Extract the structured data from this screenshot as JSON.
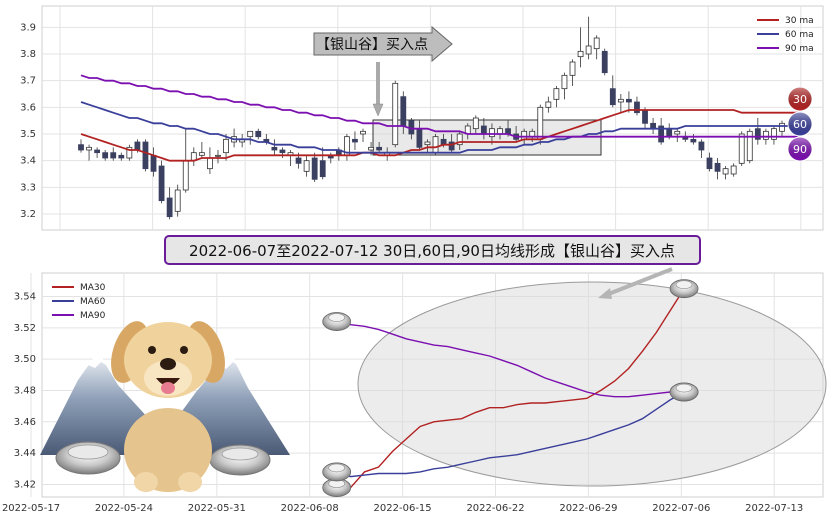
{
  "colors": {
    "ma30": "#b22222",
    "ma60": "#3a3f9a",
    "ma90": "#7b0fb0",
    "candle_up": "#ffffff",
    "candle_down": "#3b4060",
    "banner_border": "#6a1b9a",
    "banner_bg": "#e6e6e6"
  },
  "top_chart": {
    "annotation_label": "【银山谷】买入点",
    "legend": [
      "30 ma",
      "60 ma",
      "90 ma"
    ],
    "badges": [
      "30",
      "60",
      "90"
    ],
    "y_ticks": [
      "3.2",
      "3.3",
      "3.4",
      "3.5",
      "3.6",
      "3.7",
      "3.8",
      "3.9"
    ]
  },
  "banner": {
    "text": "2022-06-07至2022-07-12 30日,60日,90日均线形成【银山谷】买入点"
  },
  "bottom_chart": {
    "legend": [
      "MA30",
      "MA60",
      "MA90"
    ],
    "y_ticks": [
      "3.42",
      "3.44",
      "3.46",
      "3.48",
      "3.50",
      "3.52",
      "3.54"
    ],
    "x_ticks": [
      "2022-05-17",
      "2022-05-24",
      "2022-05-31",
      "2022-06-08",
      "2022-06-15",
      "2022-06-22",
      "2022-06-29",
      "2022-07-06",
      "2022-07-13"
    ]
  },
  "chart_data": [
    {
      "type": "candlestick",
      "title": "",
      "ylim": [
        3.14,
        3.98
      ],
      "candles": [
        {
          "o": 3.46,
          "h": 3.48,
          "l": 3.43,
          "c": 3.44
        },
        {
          "o": 3.44,
          "h": 3.46,
          "l": 3.4,
          "c": 3.45
        },
        {
          "o": 3.44,
          "h": 3.45,
          "l": 3.41,
          "c": 3.43
        },
        {
          "o": 3.43,
          "h": 3.44,
          "l": 3.4,
          "c": 3.41
        },
        {
          "o": 3.43,
          "h": 3.45,
          "l": 3.4,
          "c": 3.41
        },
        {
          "o": 3.42,
          "h": 3.43,
          "l": 3.4,
          "c": 3.41
        },
        {
          "o": 3.41,
          "h": 3.46,
          "l": 3.4,
          "c": 3.45
        },
        {
          "o": 3.47,
          "h": 3.48,
          "l": 3.43,
          "c": 3.44
        },
        {
          "o": 3.47,
          "h": 3.48,
          "l": 3.36,
          "c": 3.37
        },
        {
          "o": 3.42,
          "h": 3.45,
          "l": 3.34,
          "c": 3.36
        },
        {
          "o": 3.38,
          "h": 3.4,
          "l": 3.24,
          "c": 3.25
        },
        {
          "o": 3.26,
          "h": 3.3,
          "l": 3.18,
          "c": 3.19
        },
        {
          "o": 3.21,
          "h": 3.31,
          "l": 3.19,
          "c": 3.29
        },
        {
          "o": 3.29,
          "h": 3.52,
          "l": 3.28,
          "c": 3.4
        },
        {
          "o": 3.4,
          "h": 3.45,
          "l": 3.38,
          "c": 3.43
        },
        {
          "o": 3.42,
          "h": 3.47,
          "l": 3.41,
          "c": 3.43
        },
        {
          "o": 3.37,
          "h": 3.45,
          "l": 3.35,
          "c": 3.41
        },
        {
          "o": 3.42,
          "h": 3.44,
          "l": 3.39,
          "c": 3.42
        },
        {
          "o": 3.43,
          "h": 3.5,
          "l": 3.4,
          "c": 3.48
        },
        {
          "o": 3.47,
          "h": 3.52,
          "l": 3.45,
          "c": 3.49
        },
        {
          "o": 3.47,
          "h": 3.5,
          "l": 3.45,
          "c": 3.48
        },
        {
          "o": 3.49,
          "h": 3.51,
          "l": 3.46,
          "c": 3.51
        },
        {
          "o": 3.51,
          "h": 3.52,
          "l": 3.48,
          "c": 3.49
        },
        {
          "o": 3.48,
          "h": 3.5,
          "l": 3.46,
          "c": 3.47
        },
        {
          "o": 3.45,
          "h": 3.48,
          "l": 3.42,
          "c": 3.44
        },
        {
          "o": 3.44,
          "h": 3.45,
          "l": 3.41,
          "c": 3.43
        },
        {
          "o": 3.42,
          "h": 3.44,
          "l": 3.38,
          "c": 3.43
        },
        {
          "o": 3.41,
          "h": 3.43,
          "l": 3.37,
          "c": 3.39
        },
        {
          "o": 3.36,
          "h": 3.42,
          "l": 3.34,
          "c": 3.4
        },
        {
          "o": 3.41,
          "h": 3.43,
          "l": 3.32,
          "c": 3.33
        },
        {
          "o": 3.4,
          "h": 3.45,
          "l": 3.33,
          "c": 3.34
        },
        {
          "o": 3.42,
          "h": 3.43,
          "l": 3.39,
          "c": 3.41
        },
        {
          "o": 3.44,
          "h": 3.45,
          "l": 3.4,
          "c": 3.42
        },
        {
          "o": 3.42,
          "h": 3.5,
          "l": 3.4,
          "c": 3.49
        },
        {
          "o": 3.48,
          "h": 3.51,
          "l": 3.44,
          "c": 3.47
        },
        {
          "o": 3.5,
          "h": 3.52,
          "l": 3.47,
          "c": 3.51
        },
        {
          "o": 3.44,
          "h": 3.47,
          "l": 3.42,
          "c": 3.45
        },
        {
          "o": 3.45,
          "h": 3.47,
          "l": 3.43,
          "c": 3.44
        },
        {
          "o": 3.42,
          "h": 3.45,
          "l": 3.4,
          "c": 3.43
        },
        {
          "o": 3.46,
          "h": 3.7,
          "l": 3.45,
          "c": 3.69
        },
        {
          "o": 3.64,
          "h": 3.66,
          "l": 3.5,
          "c": 3.53
        },
        {
          "o": 3.55,
          "h": 3.56,
          "l": 3.48,
          "c": 3.5
        },
        {
          "o": 3.52,
          "h": 3.55,
          "l": 3.44,
          "c": 3.45
        },
        {
          "o": 3.46,
          "h": 3.48,
          "l": 3.43,
          "c": 3.47
        },
        {
          "o": 3.43,
          "h": 3.5,
          "l": 3.42,
          "c": 3.49
        },
        {
          "o": 3.48,
          "h": 3.5,
          "l": 3.45,
          "c": 3.46
        },
        {
          "o": 3.47,
          "h": 3.5,
          "l": 3.43,
          "c": 3.44
        },
        {
          "o": 3.46,
          "h": 3.51,
          "l": 3.44,
          "c": 3.5
        },
        {
          "o": 3.5,
          "h": 3.54,
          "l": 3.48,
          "c": 3.53
        },
        {
          "o": 3.52,
          "h": 3.57,
          "l": 3.5,
          "c": 3.56
        },
        {
          "o": 3.53,
          "h": 3.56,
          "l": 3.48,
          "c": 3.5
        },
        {
          "o": 3.49,
          "h": 3.54,
          "l": 3.46,
          "c": 3.52
        },
        {
          "o": 3.5,
          "h": 3.53,
          "l": 3.48,
          "c": 3.52
        },
        {
          "o": 3.52,
          "h": 3.55,
          "l": 3.49,
          "c": 3.5
        },
        {
          "o": 3.5,
          "h": 3.53,
          "l": 3.47,
          "c": 3.48
        },
        {
          "o": 3.48,
          "h": 3.52,
          "l": 3.46,
          "c": 3.51
        },
        {
          "o": 3.49,
          "h": 3.52,
          "l": 3.47,
          "c": 3.51
        },
        {
          "o": 3.48,
          "h": 3.61,
          "l": 3.46,
          "c": 3.6
        },
        {
          "o": 3.6,
          "h": 3.64,
          "l": 3.58,
          "c": 3.62
        },
        {
          "o": 3.63,
          "h": 3.68,
          "l": 3.6,
          "c": 3.67
        },
        {
          "o": 3.67,
          "h": 3.73,
          "l": 3.63,
          "c": 3.72
        },
        {
          "o": 3.72,
          "h": 3.78,
          "l": 3.68,
          "c": 3.77
        },
        {
          "o": 3.79,
          "h": 3.9,
          "l": 3.75,
          "c": 3.81
        },
        {
          "o": 3.8,
          "h": 3.94,
          "l": 3.78,
          "c": 3.83
        },
        {
          "o": 3.82,
          "h": 3.87,
          "l": 3.78,
          "c": 3.86
        },
        {
          "o": 3.81,
          "h": 3.82,
          "l": 3.72,
          "c": 3.73
        },
        {
          "o": 3.67,
          "h": 3.72,
          "l": 3.6,
          "c": 3.61
        },
        {
          "o": 3.62,
          "h": 3.65,
          "l": 3.58,
          "c": 3.63
        },
        {
          "o": 3.63,
          "h": 3.66,
          "l": 3.58,
          "c": 3.62
        },
        {
          "o": 3.62,
          "h": 3.64,
          "l": 3.57,
          "c": 3.58
        },
        {
          "o": 3.59,
          "h": 3.6,
          "l": 3.52,
          "c": 3.54
        },
        {
          "o": 3.54,
          "h": 3.56,
          "l": 3.5,
          "c": 3.52
        },
        {
          "o": 3.53,
          "h": 3.56,
          "l": 3.46,
          "c": 3.47
        },
        {
          "o": 3.52,
          "h": 3.54,
          "l": 3.48,
          "c": 3.49
        },
        {
          "o": 3.5,
          "h": 3.52,
          "l": 3.47,
          "c": 3.51
        },
        {
          "o": 3.49,
          "h": 3.51,
          "l": 3.47,
          "c": 3.48
        },
        {
          "o": 3.48,
          "h": 3.5,
          "l": 3.46,
          "c": 3.47
        },
        {
          "o": 3.47,
          "h": 3.48,
          "l": 3.41,
          "c": 3.44
        },
        {
          "o": 3.41,
          "h": 3.43,
          "l": 3.36,
          "c": 3.37
        },
        {
          "o": 3.39,
          "h": 3.41,
          "l": 3.33,
          "c": 3.36
        },
        {
          "o": 3.35,
          "h": 3.38,
          "l": 3.33,
          "c": 3.37
        },
        {
          "o": 3.35,
          "h": 3.39,
          "l": 3.34,
          "c": 3.38
        },
        {
          "o": 3.39,
          "h": 3.51,
          "l": 3.38,
          "c": 3.5
        },
        {
          "o": 3.4,
          "h": 3.52,
          "l": 3.39,
          "c": 3.51
        },
        {
          "o": 3.52,
          "h": 3.56,
          "l": 3.46,
          "c": 3.48
        },
        {
          "o": 3.48,
          "h": 3.52,
          "l": 3.46,
          "c": 3.51
        },
        {
          "o": 3.48,
          "h": 3.53,
          "l": 3.46,
          "c": 3.52
        },
        {
          "o": 3.51,
          "h": 3.55,
          "l": 3.49,
          "c": 3.54
        }
      ],
      "series": [
        {
          "name": "30 ma",
          "values": [
            3.5,
            3.49,
            3.48,
            3.47,
            3.46,
            3.45,
            3.44,
            3.44,
            3.43,
            3.42,
            3.41,
            3.4,
            3.4,
            3.4,
            3.4,
            3.41,
            3.41,
            3.41,
            3.41,
            3.42,
            3.42,
            3.42,
            3.42,
            3.42,
            3.42,
            3.42,
            3.42,
            3.42,
            3.42,
            3.42,
            3.42,
            3.42,
            3.42,
            3.42,
            3.42,
            3.43,
            3.43,
            3.42,
            3.42,
            3.42,
            3.43,
            3.44,
            3.44,
            3.45,
            3.45,
            3.46,
            3.46,
            3.47,
            3.47,
            3.47,
            3.47,
            3.47,
            3.47,
            3.47,
            3.47,
            3.48,
            3.48,
            3.48,
            3.49,
            3.5,
            3.51,
            3.52,
            3.53,
            3.54,
            3.55,
            3.56,
            3.57,
            3.58,
            3.59,
            3.59,
            3.59,
            3.59,
            3.59,
            3.59,
            3.59,
            3.59,
            3.59,
            3.59,
            3.59,
            3.59,
            3.59,
            3.59,
            3.58,
            3.58,
            3.58,
            3.58,
            3.58,
            3.58,
            3.58,
            3.58
          ]
        },
        {
          "name": "60 ma",
          "values": [
            3.62,
            3.61,
            3.6,
            3.59,
            3.58,
            3.57,
            3.56,
            3.56,
            3.55,
            3.54,
            3.54,
            3.53,
            3.53,
            3.52,
            3.52,
            3.51,
            3.5,
            3.5,
            3.49,
            3.48,
            3.48,
            3.48,
            3.47,
            3.47,
            3.46,
            3.46,
            3.46,
            3.45,
            3.45,
            3.45,
            3.44,
            3.44,
            3.44,
            3.43,
            3.43,
            3.43,
            3.43,
            3.43,
            3.43,
            3.43,
            3.43,
            3.43,
            3.43,
            3.43,
            3.43,
            3.43,
            3.43,
            3.43,
            3.44,
            3.44,
            3.44,
            3.44,
            3.45,
            3.45,
            3.45,
            3.46,
            3.46,
            3.47,
            3.47,
            3.48,
            3.48,
            3.49,
            3.49,
            3.5,
            3.5,
            3.51,
            3.51,
            3.52,
            3.52,
            3.52,
            3.52,
            3.52,
            3.52,
            3.52,
            3.52,
            3.53,
            3.53,
            3.53,
            3.53,
            3.53,
            3.53,
            3.53,
            3.53,
            3.53,
            3.53,
            3.53,
            3.53,
            3.53,
            3.53,
            3.53
          ]
        },
        {
          "name": "90 ma",
          "values": [
            3.72,
            3.71,
            3.71,
            3.7,
            3.7,
            3.69,
            3.69,
            3.68,
            3.68,
            3.67,
            3.67,
            3.66,
            3.66,
            3.65,
            3.65,
            3.64,
            3.64,
            3.63,
            3.63,
            3.62,
            3.62,
            3.61,
            3.61,
            3.6,
            3.6,
            3.59,
            3.59,
            3.58,
            3.58,
            3.57,
            3.57,
            3.56,
            3.56,
            3.55,
            3.55,
            3.54,
            3.54,
            3.54,
            3.53,
            3.53,
            3.53,
            3.52,
            3.52,
            3.52,
            3.51,
            3.51,
            3.51,
            3.51,
            3.5,
            3.5,
            3.5,
            3.5,
            3.5,
            3.5,
            3.49,
            3.49,
            3.49,
            3.49,
            3.49,
            3.49,
            3.49,
            3.49,
            3.49,
            3.49,
            3.49,
            3.49,
            3.49,
            3.49,
            3.49,
            3.49,
            3.49,
            3.49,
            3.49,
            3.49,
            3.49,
            3.49,
            3.49,
            3.49,
            3.49,
            3.49,
            3.49,
            3.49,
            3.49,
            3.49,
            3.49,
            3.49,
            3.49,
            3.49,
            3.49,
            3.49
          ]
        }
      ]
    },
    {
      "type": "line",
      "title": "",
      "ylim": [
        3.412,
        3.555
      ],
      "xlim": [
        0,
        57
      ],
      "x_ticks": [
        "2022-05-17",
        "2022-05-24",
        "2022-05-31",
        "2022-06-08",
        "2022-06-15",
        "2022-06-22",
        "2022-06-29",
        "2022-07-06",
        "2022-07-13"
      ],
      "series": [
        {
          "name": "MA30",
          "start": 22,
          "values": [
            3.418,
            3.418,
            3.428,
            3.431,
            3.441,
            3.449,
            3.457,
            3.46,
            3.461,
            3.462,
            3.466,
            3.469,
            3.469,
            3.471,
            3.472,
            3.472,
            3.473,
            3.474,
            3.475,
            3.48,
            3.486,
            3.494,
            3.505,
            3.517,
            3.531,
            3.545
          ]
        },
        {
          "name": "MA60",
          "start": 22,
          "values": [
            3.428,
            3.425,
            3.426,
            3.427,
            3.427,
            3.427,
            3.428,
            3.43,
            3.431,
            3.433,
            3.435,
            3.437,
            3.438,
            3.439,
            3.441,
            3.443,
            3.445,
            3.447,
            3.449,
            3.452,
            3.455,
            3.458,
            3.462,
            3.468,
            3.474,
            3.479
          ]
        },
        {
          "name": "MA90",
          "start": 22,
          "values": [
            3.524,
            3.522,
            3.521,
            3.519,
            3.516,
            3.513,
            3.511,
            3.509,
            3.508,
            3.506,
            3.504,
            3.502,
            3.499,
            3.496,
            3.492,
            3.488,
            3.485,
            3.482,
            3.479,
            3.477,
            3.476,
            3.476,
            3.477,
            3.478,
            3.479,
            3.479
          ]
        }
      ]
    }
  ]
}
